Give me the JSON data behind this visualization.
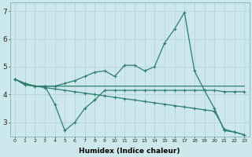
{
  "bg_color": "#cde8ec",
  "grid_color": "#b0d0d5",
  "line_color": "#2e7d6e",
  "xlabel": "Humidex (Indice chaleur)",
  "xlim": [
    -0.5,
    23.5
  ],
  "ylim": [
    2.5,
    7.3
  ],
  "yticks": [
    3,
    4,
    5,
    6,
    7
  ],
  "xticks": [
    0,
    1,
    2,
    3,
    4,
    5,
    6,
    7,
    8,
    9,
    10,
    11,
    12,
    13,
    14,
    15,
    16,
    17,
    18,
    19,
    20,
    21,
    22,
    23
  ],
  "line1_x": [
    0,
    1,
    2,
    3,
    4,
    5,
    6,
    7,
    8,
    9,
    10,
    11,
    12,
    13,
    14,
    15,
    16,
    17,
    18,
    19,
    20,
    21,
    22,
    23
  ],
  "line1_y": [
    4.55,
    4.35,
    4.3,
    4.3,
    4.3,
    4.4,
    4.5,
    4.65,
    4.8,
    4.85,
    4.65,
    5.05,
    5.05,
    4.85,
    5.0,
    5.85,
    6.35,
    6.95,
    4.85,
    4.15,
    4.15,
    4.1,
    4.1,
    4.1
  ],
  "line2_x": [
    0,
    1,
    2,
    3,
    4,
    5,
    6,
    7,
    8,
    9,
    10,
    11,
    12,
    13,
    14,
    15,
    16,
    17,
    18,
    19,
    20,
    21,
    22,
    23
  ],
  "line2_y": [
    4.55,
    4.35,
    4.3,
    4.3,
    3.65,
    2.7,
    3.0,
    3.5,
    3.8,
    4.15,
    4.15,
    4.15,
    4.15,
    4.15,
    4.15,
    4.15,
    4.15,
    4.15,
    4.15,
    4.15,
    3.5,
    2.7,
    2.65,
    2.55
  ],
  "line3_x": [
    0,
    1,
    2,
    3,
    4,
    5,
    6,
    7,
    8,
    9,
    10,
    11,
    12,
    13,
    14,
    15,
    16,
    17,
    18,
    19,
    20,
    21,
    22,
    23
  ],
  "line3_y": [
    4.55,
    4.4,
    4.3,
    4.25,
    4.2,
    4.15,
    4.1,
    4.05,
    4.0,
    3.95,
    3.9,
    3.85,
    3.8,
    3.75,
    3.7,
    3.65,
    3.6,
    3.55,
    3.5,
    3.45,
    3.4,
    2.75,
    2.65,
    2.55
  ],
  "line4_x": [
    0,
    1,
    2,
    3,
    4,
    5,
    6,
    7,
    8,
    9,
    10,
    11,
    12,
    13,
    14,
    15,
    16,
    17,
    18,
    19,
    20,
    21,
    22,
    23
  ],
  "line4_y": [
    4.55,
    4.4,
    4.3,
    4.3,
    4.3,
    4.3,
    4.3,
    4.3,
    4.3,
    4.3,
    4.3,
    4.3,
    4.3,
    4.3,
    4.3,
    4.3,
    4.3,
    4.3,
    4.3,
    4.3,
    4.3,
    4.3,
    4.3,
    4.3
  ]
}
